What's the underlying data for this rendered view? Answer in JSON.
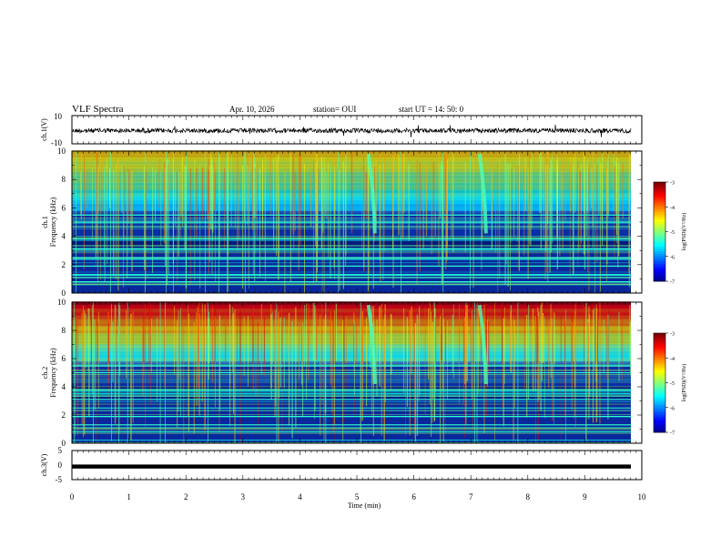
{
  "header": {
    "title": "VLF Spectra",
    "date": "Apr. 10, 2026",
    "station": "station= OUI",
    "start": "start  UT =   14: 50: 0"
  },
  "chart_data": [
    {
      "id": "ch1_waveform",
      "type": "line",
      "title": "",
      "ylabel": "ch.1(V)",
      "xlim": [
        0,
        10
      ],
      "ylim": [
        -10,
        10
      ],
      "yticks": [
        "10",
        "-10"
      ],
      "description_values": {
        "baseline_V": 0,
        "noise_amplitude_V": 1.5
      }
    },
    {
      "id": "ch1_spectrogram",
      "type": "heatmap",
      "ylabel_top": "ch.1",
      "ylabel": "Frequency  (kHz)",
      "xlim": [
        0,
        9.8
      ],
      "ylim": [
        0,
        10
      ],
      "yticks": [
        "0",
        "2",
        "4",
        "6",
        "8",
        "10"
      ],
      "colorbar": {
        "label": "log(PSD)(V²/Hz)",
        "range": [
          -7,
          -3
        ],
        "ticks": [
          "-3",
          "-4",
          "-5",
          "-6",
          "-7"
        ]
      },
      "features": {
        "emission_band_kHz": [
          5.8,
          10
        ],
        "strong_line_kHz": [
          0.8,
          1.3,
          1.9,
          2.5,
          3.1,
          3.8,
          5.0,
          5.5
        ],
        "dispersed_events_min": [
          5.3,
          7.25
        ]
      }
    },
    {
      "id": "ch2_spectrogram",
      "type": "heatmap",
      "ylabel_top": "ch.2",
      "ylabel": "Frequency  (kHz)",
      "xlim": [
        0,
        9.8
      ],
      "ylim": [
        0,
        10
      ],
      "yticks": [
        "0",
        "2",
        "4",
        "6",
        "8",
        "10"
      ],
      "colorbar": {
        "label": "log(PSD)(V²/Hz)",
        "range": [
          -7,
          -3
        ],
        "ticks": [
          "-3",
          "-4",
          "-5",
          "-6",
          "-7"
        ]
      },
      "features": {
        "emission_band_kHz": [
          5.8,
          10
        ],
        "strong_line_kHz": [
          0.8,
          1.3,
          1.9,
          2.5,
          3.1,
          3.8,
          5.0,
          5.5
        ],
        "dispersed_events_min": [
          5.3,
          7.25
        ]
      }
    },
    {
      "id": "ch3_waveform",
      "type": "line",
      "ylabel": "ch.3(V)",
      "xlim": [
        0,
        10
      ],
      "ylim": [
        -5,
        5
      ],
      "yticks": [
        "5",
        "0",
        "-5"
      ],
      "xlabel": "Time  (min)",
      "xticks": [
        "0",
        "1",
        "2",
        "3",
        "4",
        "5",
        "6",
        "7",
        "8",
        "9",
        "10"
      ],
      "description_values": {
        "baseline_V": -0.5
      }
    }
  ]
}
